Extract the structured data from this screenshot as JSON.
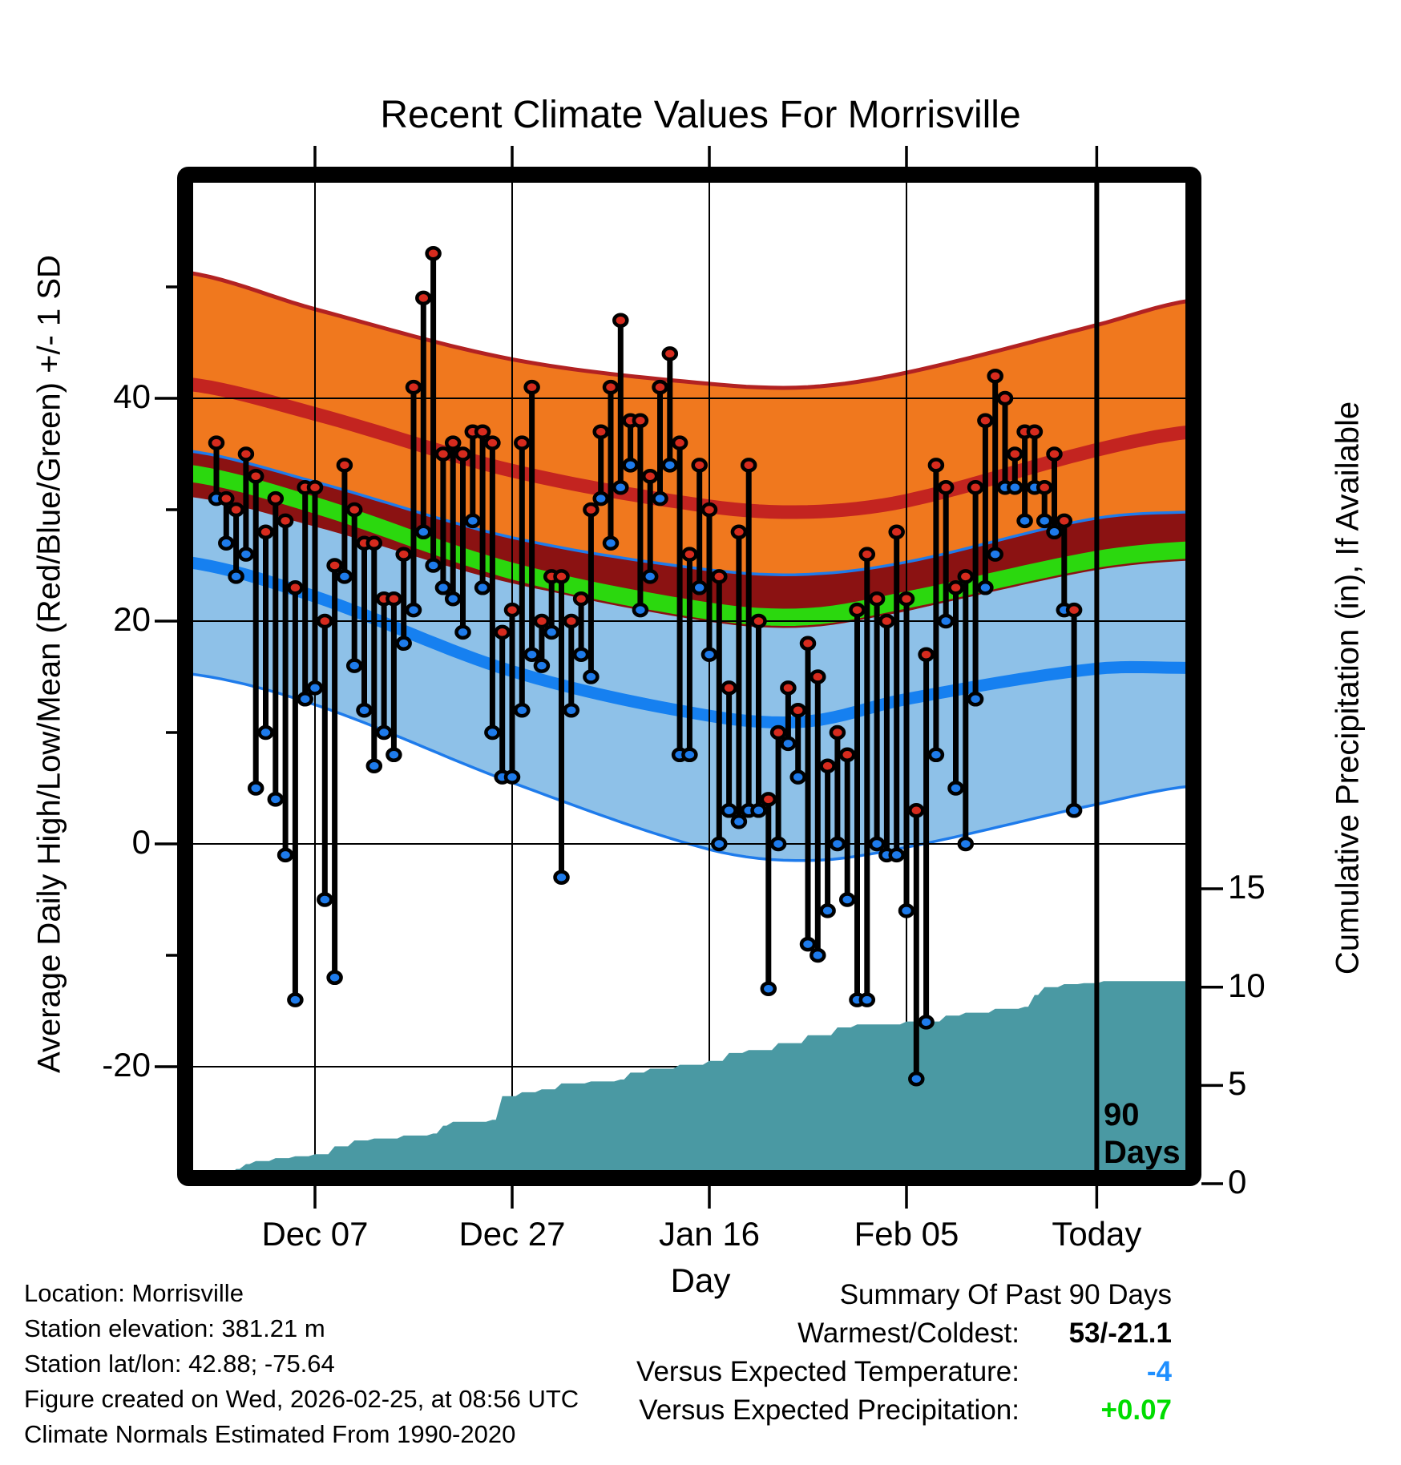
{
  "title": "Recent Climate Values For Morrisville",
  "axes": {
    "left_label": "Average Daily High/Low/Mean (Red/Blue/Green) +/- 1 SD",
    "right_label": "Cumulative Precipitation (in), If Available",
    "x_label": "Day",
    "x_tick_labels": [
      "Dec 07",
      "Dec 27",
      "Jan 16",
      "Feb 05",
      "Today"
    ],
    "left_tick_labels": [
      "40",
      "20",
      "0",
      "-20"
    ],
    "right_tick_labels": [
      "15",
      "10",
      "5",
      "0"
    ]
  },
  "annotation": {
    "line_label": [
      "90",
      "Days"
    ]
  },
  "footer": {
    "info_lines": [
      "Location: Morrisville",
      "Station elevation: 381.21 m",
      "Station lat/lon: 42.88; -75.64",
      "Figure created on Wed, 2026-02-25, at 08:56 UTC",
      "Climate Normals Estimated From 1990-2020"
    ]
  },
  "summary": {
    "title": "Summary Of Past 90 Days",
    "rows": [
      {
        "label": "Warmest/Coldest:",
        "value": "53/-21.1",
        "color": "#000000"
      },
      {
        "label": "Versus Expected Temperature:",
        "value": "-4",
        "color": "#1E8FFF"
      },
      {
        "label": "Versus Expected Precipitation:",
        "value": "+0.07",
        "color": "#00DC00"
      }
    ]
  },
  "colors": {
    "background": "#FFFFFF",
    "frame": "#000000",
    "orange_band": "#F0781E",
    "band_edge_red": "#B22222",
    "high_mean_line": "#C32420",
    "overlap_band": "#8B1212",
    "mean_band": "#2BD80E",
    "low_band": "#8EC1E8",
    "low_mean_line": "#1680F0",
    "low_band_edge": "#1E7BEB",
    "precip_fill": "#4A99A3",
    "dot_high": "#D62B1E",
    "dot_low": "#1E7BEB",
    "stem": "#000000",
    "gridline": "#000000"
  },
  "chart_data": {
    "type": "line",
    "title": "Recent Climate Values For Morrisville",
    "xlabel": "Day",
    "ylabel_left": "Average Daily High/Low/Mean (Red/Blue/Green) +/- 1 SD",
    "ylabel_right": "Cumulative Precipitation (in), If Available",
    "x_axis": {
      "tick_labels": [
        "Dec 07",
        "Dec 27",
        "Jan 16",
        "Feb 05",
        "Today"
      ],
      "tick_days": [
        10,
        30,
        50,
        70,
        89.3
      ],
      "days_span": 90
    },
    "y_left": {
      "ticks": [
        40,
        20,
        0,
        -20
      ],
      "minor_ticks": [
        50,
        30,
        10,
        -10
      ],
      "range": [
        -29,
        59
      ],
      "units": "degF"
    },
    "y_right": {
      "ticks": [
        15,
        10,
        5,
        0
      ],
      "range": [
        0,
        51
      ],
      "units": "in"
    },
    "daily_high": [
      36,
      31,
      30,
      35,
      33,
      28,
      31,
      29,
      23,
      32,
      32,
      20,
      25,
      34,
      30,
      27,
      27,
      22,
      22,
      26,
      41,
      49,
      53,
      35,
      36,
      35,
      37,
      37,
      36,
      19,
      21,
      36,
      41,
      20,
      24,
      24,
      20,
      22,
      30,
      37,
      41,
      47,
      38,
      38,
      33,
      41,
      44,
      36,
      26,
      34,
      30,
      24,
      14,
      28,
      34,
      20,
      4,
      10,
      14,
      12,
      18,
      15,
      7,
      10,
      8,
      21,
      26,
      22,
      20,
      28,
      22,
      3,
      17,
      34,
      32,
      23,
      24,
      32,
      38,
      42,
      40,
      35,
      37,
      37,
      32,
      35,
      29,
      21
    ],
    "daily_low": [
      31,
      27,
      24,
      26,
      5,
      10,
      4,
      -1,
      -14,
      13,
      14,
      -5,
      -12,
      24,
      16,
      12,
      7,
      10,
      8,
      18,
      21,
      28,
      25,
      23,
      22,
      19,
      29,
      23,
      10,
      6,
      6,
      12,
      17,
      16,
      19,
      -3,
      12,
      17,
      15,
      31,
      27,
      32,
      34,
      21,
      24,
      31,
      34,
      8,
      8,
      23,
      17,
      0,
      3,
      2,
      3,
      3,
      -13,
      0,
      9,
      6,
      -9,
      -10,
      -6,
      0,
      -5,
      -14,
      -14,
      0,
      -1,
      -1,
      -6,
      -21.1,
      -16,
      8,
      20,
      5,
      0,
      13,
      23,
      26,
      32,
      32,
      29,
      32,
      29,
      28,
      21,
      3
    ],
    "climatology": {
      "days": [
        -3,
        10,
        30,
        50,
        60,
        70,
        89,
        99
      ],
      "high_plus_sd": [
        51.3,
        48.0,
        43.5,
        41.3,
        41.0,
        42.3,
        46.5,
        48.8
      ],
      "high_mean": [
        41.3,
        38.6,
        33.5,
        30.3,
        29.8,
        30.8,
        35.3,
        37.0
      ],
      "high_minus_sd": [
        31.3,
        28.6,
        23.5,
        20.5,
        20.0,
        21.0,
        25.5,
        27.0
      ],
      "low_plus_sd": [
        35.3,
        32.5,
        27.5,
        24.6,
        24.2,
        25.3,
        29.2,
        29.8
      ],
      "mean": [
        33.3,
        30.4,
        24.5,
        20.9,
        20.4,
        21.9,
        25.5,
        26.4
      ],
      "low_mean": [
        25.3,
        22.2,
        15.5,
        11.5,
        11.0,
        13.0,
        15.7,
        15.8
      ],
      "low_minus_sd": [
        15.3,
        12.5,
        5.5,
        -0.5,
        -1.5,
        -0.3,
        3.5,
        5.2
      ]
    },
    "cumulative_precip": {
      "days": [
        -3,
        0,
        1,
        2,
        3,
        4,
        6,
        8,
        10,
        12,
        14,
        16,
        19,
        22,
        23,
        24,
        28,
        29,
        31,
        33,
        35,
        38,
        41,
        42,
        44,
        47,
        50,
        52,
        54,
        57,
        60,
        63,
        65,
        70,
        74,
        76,
        79,
        82,
        83,
        84,
        86,
        88,
        90,
        99
      ],
      "inches": [
        0,
        0.05,
        0.4,
        0.75,
        1.0,
        1.15,
        1.3,
        1.4,
        1.5,
        1.9,
        2.2,
        2.3,
        2.45,
        2.55,
        2.95,
        3.15,
        3.25,
        4.45,
        4.65,
        4.8,
        5.1,
        5.2,
        5.3,
        5.65,
        5.85,
        6.05,
        6.25,
        6.65,
        6.8,
        7.15,
        7.55,
        7.95,
        8.1,
        8.25,
        8.55,
        8.7,
        8.9,
        9.0,
        9.6,
        10.0,
        10.15,
        10.2,
        10.3,
        10.3
      ]
    },
    "annotations": {
      "vline_day": 89.3,
      "vline_label": "90 Days"
    },
    "summary": {
      "warmest": 53,
      "coldest": -21.1,
      "vs_expected_temperature": -4,
      "vs_expected_precipitation": 0.07
    }
  }
}
